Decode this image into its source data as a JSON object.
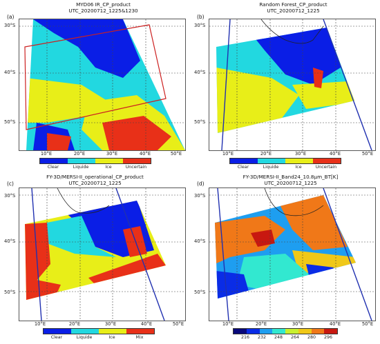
{
  "panels": {
    "a": {
      "label": "(a)",
      "title1": "MYD06 IR_CP_product",
      "title2": "UTC_20200712_1225&1230",
      "lat_labels": [
        "30°S",
        "40°S",
        "50°S"
      ],
      "lon_labels": [
        "10°E",
        "20°E",
        "30°E",
        "40°E",
        "50°E"
      ],
      "legend": [
        "Clear",
        "Liquide",
        "Ice",
        "Uncertain"
      ],
      "legend_colors": [
        "#0a1ee6",
        "#22d8e0",
        "#e8ee18",
        "#e83018"
      ]
    },
    "b": {
      "label": "(b)",
      "title1": "Random Forest_CP_product",
      "title2": "UTC_20200712_1225",
      "lat_labels": [
        "30°S",
        "40°S",
        "50°S"
      ],
      "lon_labels": [
        "10°E",
        "20°E",
        "30°E",
        "40°E",
        "50°E"
      ],
      "legend": [
        "Clear",
        "Liquide",
        "Ice",
        "Uncertain"
      ],
      "legend_colors": [
        "#0a1ee6",
        "#22d8e0",
        "#e8ee18",
        "#e83018"
      ]
    },
    "c": {
      "label": "(c)",
      "title1": "FY-3D/MERSI-II_operational_CP_product",
      "title2": "UTC_20200712_1225",
      "lat_labels": [
        "30°S",
        "40°S",
        "50°S"
      ],
      "lon_labels": [
        "10°E",
        "20°E",
        "30°E",
        "40°E",
        "50°E"
      ],
      "legend": [
        "Clear",
        "Liquide",
        "Ice",
        "Mix"
      ],
      "legend_colors": [
        "#0a1ee6",
        "#22d8e0",
        "#e8ee18",
        "#e83018"
      ]
    },
    "d": {
      "label": "(d)",
      "title1": "FY-3D/MERSI-II_Band24_10.8µm_BT[K]",
      "title2": "UTC_20200712_1225",
      "lat_labels": [
        "30°S",
        "40°S",
        "50°S"
      ],
      "lon_labels": [
        "10°E",
        "20°E",
        "30°E",
        "40°E",
        "50°E"
      ],
      "colorbar_ticks": [
        "216",
        "232",
        "248",
        "264",
        "280",
        "296"
      ],
      "colorbar_colors": [
        "#08087a",
        "#0a2ce6",
        "#1e9ef0",
        "#32e8d0",
        "#c8f030",
        "#f0c818",
        "#f07818",
        "#c81810"
      ]
    }
  }
}
